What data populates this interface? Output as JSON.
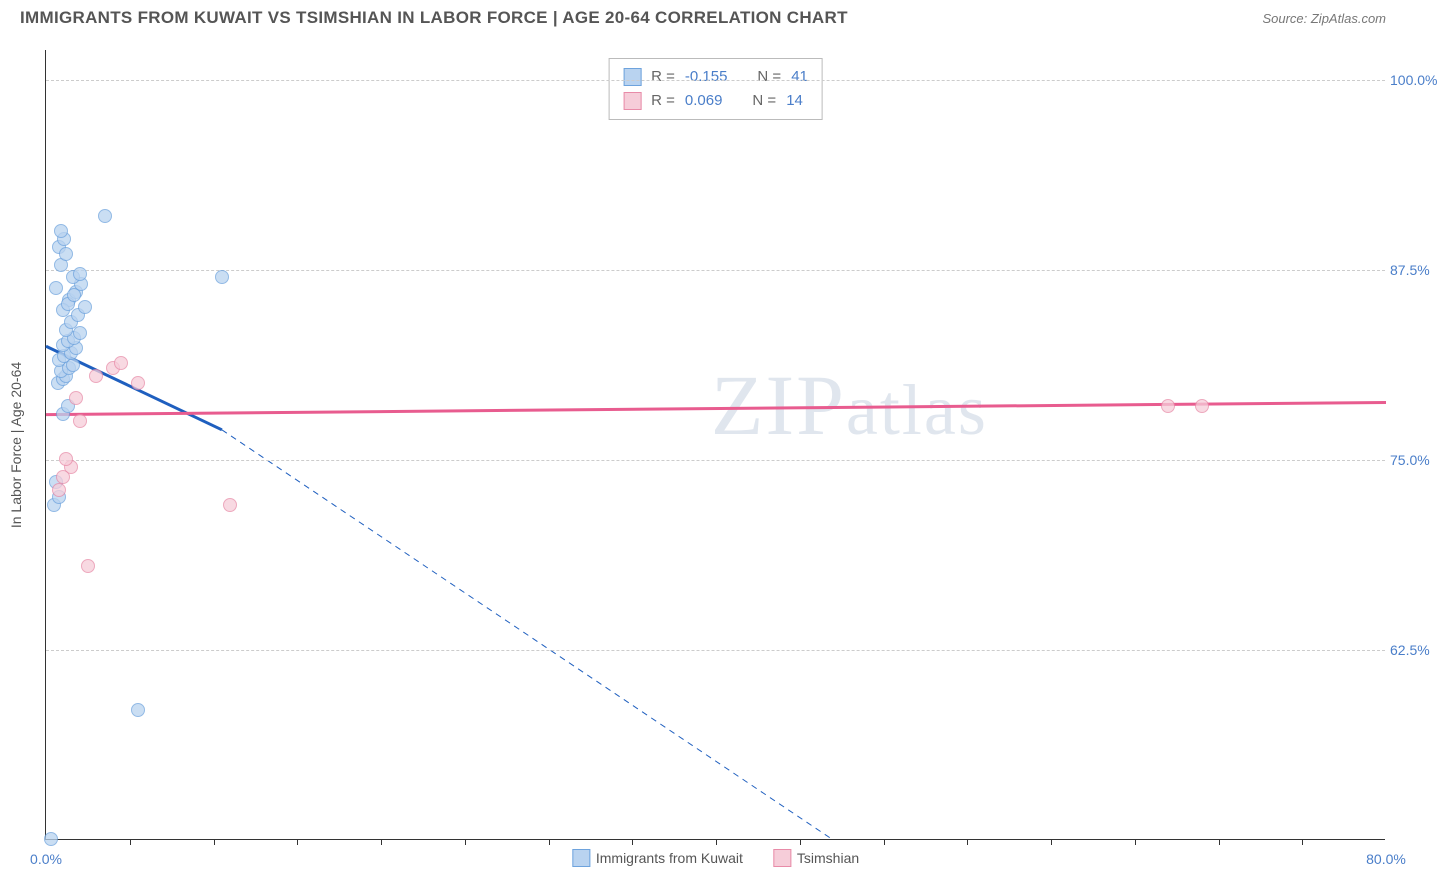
{
  "header": {
    "title": "IMMIGRANTS FROM KUWAIT VS TSIMSHIAN IN LABOR FORCE | AGE 20-64 CORRELATION CHART",
    "source": "Source: ZipAtlas.com"
  },
  "chart": {
    "type": "scatter",
    "ylabel": "In Labor Force | Age 20-64",
    "background_color": "#ffffff",
    "grid_color": "#cccccc",
    "axis_color": "#333333",
    "label_color": "#4a7ec9",
    "ylabel_color": "#555555",
    "xlim": [
      0,
      80
    ],
    "ylim": [
      50,
      102
    ],
    "yticks": [
      {
        "v": 62.5,
        "label": "62.5%"
      },
      {
        "v": 75.0,
        "label": "75.0%"
      },
      {
        "v": 87.5,
        "label": "87.5%"
      },
      {
        "v": 100.0,
        "label": "100.0%"
      }
    ],
    "xticks_minor": [
      5,
      10,
      15,
      20,
      25,
      30,
      35,
      40,
      45,
      50,
      55,
      60,
      65,
      70,
      75
    ],
    "xtick_labels": [
      {
        "v": 0,
        "label": "0.0%"
      },
      {
        "v": 80,
        "label": "80.0%"
      }
    ],
    "watermark": "ZIPatlas",
    "correlation_legend": {
      "rows": [
        {
          "color_fill": "#b9d3f0",
          "color_border": "#6ea3dd",
          "R_label": "R =",
          "R": "-0.155",
          "N_label": "N =",
          "N": "41"
        },
        {
          "color_fill": "#f6cdd9",
          "color_border": "#e88ba8",
          "R_label": "R =",
          "R": "0.069",
          "N_label": "N =",
          "N": "14"
        }
      ]
    },
    "series_legend": [
      {
        "color_fill": "#b9d3f0",
        "color_border": "#6ea3dd",
        "label": "Immigrants from Kuwait"
      },
      {
        "color_fill": "#f6cdd9",
        "color_border": "#e88ba8",
        "label": "Tsimshian"
      }
    ],
    "series": [
      {
        "name": "Immigrants from Kuwait",
        "marker_fill": "#b9d3f0",
        "marker_border": "#6ea3dd",
        "marker_opacity": 0.75,
        "trend": {
          "color": "#1f5fbf",
          "width": 3,
          "x1": 0,
          "y1": 82.5,
          "x2": 10.5,
          "y2": 77,
          "dash_x2": 47,
          "dash_y2": 50
        },
        "points": [
          [
            0.3,
            50.0
          ],
          [
            0.5,
            72.0
          ],
          [
            0.8,
            72.5
          ],
          [
            0.6,
            73.5
          ],
          [
            1.0,
            78.0
          ],
          [
            1.3,
            78.5
          ],
          [
            0.7,
            80.0
          ],
          [
            1.0,
            80.3
          ],
          [
            1.2,
            80.5
          ],
          [
            0.9,
            80.8
          ],
          [
            1.4,
            81.0
          ],
          [
            1.6,
            81.2
          ],
          [
            0.8,
            81.5
          ],
          [
            1.1,
            81.8
          ],
          [
            1.5,
            82.0
          ],
          [
            1.8,
            82.3
          ],
          [
            1.0,
            82.5
          ],
          [
            1.3,
            82.8
          ],
          [
            1.7,
            83.0
          ],
          [
            2.0,
            83.3
          ],
          [
            1.2,
            83.5
          ],
          [
            1.5,
            84.0
          ],
          [
            1.9,
            84.5
          ],
          [
            2.3,
            85.0
          ],
          [
            1.4,
            85.5
          ],
          [
            1.8,
            86.0
          ],
          [
            2.1,
            86.5
          ],
          [
            1.6,
            87.0
          ],
          [
            2.0,
            87.2
          ],
          [
            5.5,
            58.5
          ],
          [
            0.8,
            89.0
          ],
          [
            1.1,
            89.5
          ],
          [
            0.9,
            90.0
          ],
          [
            3.5,
            91.0
          ],
          [
            10.5,
            87.0
          ],
          [
            1.0,
            84.8
          ],
          [
            1.3,
            85.2
          ],
          [
            1.7,
            85.8
          ],
          [
            0.6,
            86.3
          ],
          [
            0.9,
            87.8
          ],
          [
            1.2,
            88.5
          ]
        ]
      },
      {
        "name": "Tsimshian",
        "marker_fill": "#f6cdd9",
        "marker_border": "#e88ba8",
        "marker_opacity": 0.75,
        "trend": {
          "color": "#e85c8f",
          "width": 3,
          "x1": 0,
          "y1": 78.0,
          "x2": 80,
          "y2": 78.8
        },
        "points": [
          [
            0.8,
            73.0
          ],
          [
            1.5,
            74.5
          ],
          [
            1.0,
            73.8
          ],
          [
            2.5,
            68.0
          ],
          [
            3.0,
            80.5
          ],
          [
            4.0,
            81.0
          ],
          [
            4.5,
            81.3
          ],
          [
            11.0,
            72.0
          ],
          [
            2.0,
            77.5
          ],
          [
            67.0,
            78.5
          ],
          [
            69.0,
            78.5
          ],
          [
            1.2,
            75.0
          ],
          [
            5.5,
            80.0
          ],
          [
            1.8,
            79.0
          ]
        ]
      }
    ]
  }
}
